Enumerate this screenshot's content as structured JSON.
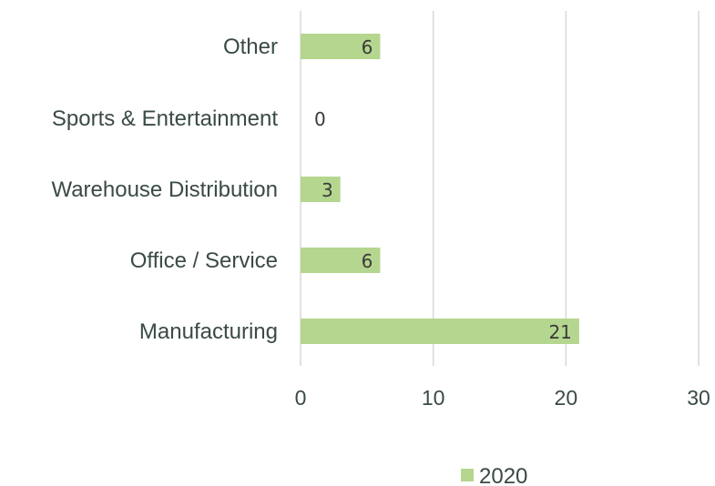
{
  "chart_data": {
    "type": "bar",
    "orientation": "horizontal",
    "categories": [
      "Manufacturing",
      "Office / Service",
      "Warehouse Distribution",
      "Sports & Entertainment",
      "Other"
    ],
    "series": [
      {
        "name": "2020",
        "values": [
          21,
          6,
          3,
          0,
          6
        ],
        "color": "#b5d68e"
      }
    ],
    "xlim": [
      0,
      30
    ],
    "xticks": [
      "0",
      "10",
      "20",
      "30"
    ],
    "grid": "vertical",
    "legend": "bottom",
    "data_labels": true
  },
  "colors": {
    "bar": "#b5d68e",
    "grid": "#d9d9d9",
    "text": "#3a4a47"
  }
}
